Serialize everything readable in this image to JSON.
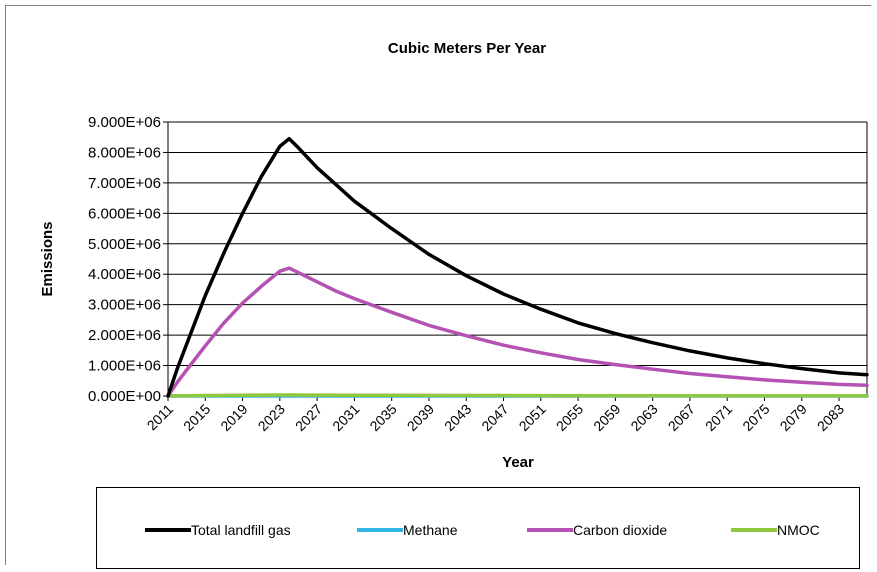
{
  "chart_data": {
    "type": "line",
    "title": "Cubic Meters Per Year",
    "xlabel": "Year",
    "ylabel": "Emissions",
    "xlim": [
      2011,
      2086
    ],
    "ylim": [
      0,
      9000000
    ],
    "yticks": [
      "0.000E+00",
      "1.000E+06",
      "2.000E+06",
      "3.000E+06",
      "4.000E+06",
      "5.000E+06",
      "6.000E+06",
      "7.000E+06",
      "8.000E+06",
      "9.000E+06"
    ],
    "xticks": [
      "2011",
      "2015",
      "2019",
      "2023",
      "2027",
      "2031",
      "2035",
      "2039",
      "2043",
      "2047",
      "2051",
      "2055",
      "2059",
      "2063",
      "2067",
      "2071",
      "2075",
      "2079",
      "2083"
    ],
    "grid": true,
    "legend_position": "bottom",
    "series": [
      {
        "name": "Total landfill gas",
        "color": "#000000",
        "x": [
          2011,
          2012,
          2013,
          2015,
          2017,
          2019,
          2021,
          2023,
          2024,
          2025,
          2027,
          2029,
          2031,
          2035,
          2039,
          2043,
          2047,
          2051,
          2055,
          2059,
          2063,
          2067,
          2071,
          2075,
          2079,
          2083,
          2086
        ],
        "y": [
          0,
          900000,
          1700000,
          3300000,
          4700000,
          6000000,
          7200000,
          8200000,
          8450000,
          8150000,
          7500000,
          6950000,
          6400000,
          5500000,
          4650000,
          3950000,
          3350000,
          2850000,
          2400000,
          2050000,
          1750000,
          1480000,
          1250000,
          1060000,
          900000,
          760000,
          700000
        ]
      },
      {
        "name": "Methane",
        "color": "#33b5e5",
        "x": [
          2011,
          2086
        ],
        "y": [
          0,
          0
        ]
      },
      {
        "name": "Carbon dioxide",
        "color": "#b452b4",
        "x": [
          2011,
          2012,
          2013,
          2015,
          2017,
          2019,
          2021,
          2023,
          2024,
          2025,
          2027,
          2029,
          2031,
          2035,
          2039,
          2043,
          2047,
          2051,
          2055,
          2059,
          2063,
          2067,
          2071,
          2075,
          2079,
          2083,
          2086
        ],
        "y": [
          0,
          450000,
          850000,
          1650000,
          2400000,
          3050000,
          3600000,
          4100000,
          4200000,
          4050000,
          3750000,
          3450000,
          3200000,
          2750000,
          2320000,
          1980000,
          1670000,
          1420000,
          1200000,
          1030000,
          880000,
          740000,
          630000,
          530000,
          450000,
          380000,
          350000
        ]
      },
      {
        "name": "NMOC",
        "color": "#8fc73e",
        "x": [
          2011,
          2015,
          2019,
          2023,
          2024,
          2027,
          2031,
          2039,
          2051,
          2063,
          2075,
          2086
        ],
        "y": [
          0,
          15000,
          25000,
          32000,
          33000,
          29000,
          25000,
          19000,
          12000,
          7000,
          4000,
          3000
        ]
      }
    ]
  }
}
